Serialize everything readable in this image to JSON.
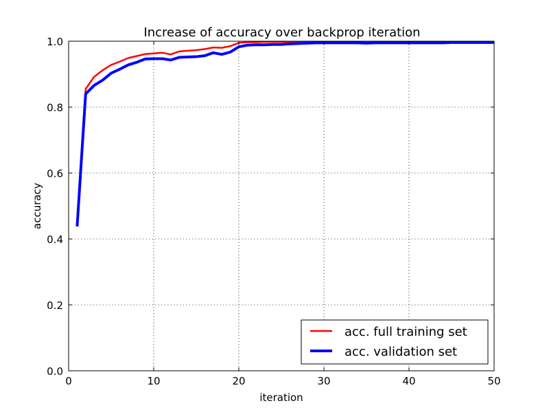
{
  "chart_data": {
    "type": "line",
    "title": "Increase of accuracy over backprop iteration",
    "xlabel": "iteration",
    "ylabel": "accuracy",
    "xlim": [
      0,
      50
    ],
    "ylim": [
      0.0,
      1.0
    ],
    "xticks": [
      0,
      10,
      20,
      30,
      40,
      50
    ],
    "yticks": [
      0.0,
      0.2,
      0.4,
      0.6,
      0.8,
      1.0
    ],
    "xtick_labels": [
      "0",
      "10",
      "20",
      "30",
      "40",
      "50"
    ],
    "ytick_labels": [
      "0.0",
      "0.2",
      "0.4",
      "0.6",
      "0.8",
      "1.0"
    ],
    "grid": true,
    "legend_position": "bottom-right",
    "series": [
      {
        "name": "acc. full training set",
        "color": "#ff0000",
        "x": [
          1,
          2,
          3,
          4,
          5,
          6,
          7,
          8,
          9,
          10,
          11,
          12,
          13,
          14,
          15,
          16,
          17,
          18,
          19,
          20,
          21,
          22,
          23,
          24,
          25,
          26,
          27,
          28,
          29,
          30,
          31,
          32,
          33,
          34,
          35,
          36,
          37,
          38,
          39,
          40,
          41,
          42,
          43,
          44,
          45,
          46,
          47,
          48,
          49,
          50
        ],
        "values": [
          0.45,
          0.855,
          0.892,
          0.912,
          0.928,
          0.938,
          0.949,
          0.955,
          0.961,
          0.963,
          0.965,
          0.96,
          0.969,
          0.971,
          0.973,
          0.976,
          0.981,
          0.98,
          0.985,
          0.995,
          0.997,
          0.997,
          0.998,
          0.998,
          0.998,
          0.998,
          0.998,
          0.998,
          0.998,
          0.998,
          0.998,
          0.998,
          0.998,
          0.998,
          0.998,
          0.998,
          0.998,
          0.998,
          0.998,
          0.998,
          0.998,
          0.998,
          0.998,
          0.998,
          0.998,
          0.998,
          0.998,
          0.998,
          0.998,
          0.998
        ]
      },
      {
        "name": "acc. validation set",
        "color": "#0000ff",
        "x": [
          1,
          2,
          3,
          4,
          5,
          6,
          7,
          8,
          9,
          10,
          11,
          12,
          13,
          14,
          15,
          16,
          17,
          18,
          19,
          20,
          21,
          22,
          23,
          24,
          25,
          26,
          27,
          28,
          29,
          30,
          31,
          32,
          33,
          34,
          35,
          36,
          37,
          38,
          39,
          40,
          41,
          42,
          43,
          44,
          45,
          46,
          47,
          48,
          49,
          50
        ],
        "values": [
          0.438,
          0.84,
          0.866,
          0.882,
          0.903,
          0.915,
          0.928,
          0.936,
          0.946,
          0.947,
          0.947,
          0.943,
          0.951,
          0.952,
          0.953,
          0.956,
          0.965,
          0.96,
          0.967,
          0.983,
          0.988,
          0.989,
          0.989,
          0.99,
          0.99,
          0.992,
          0.993,
          0.994,
          0.995,
          0.995,
          0.995,
          0.995,
          0.995,
          0.995,
          0.994,
          0.995,
          0.995,
          0.995,
          0.995,
          0.995,
          0.995,
          0.995,
          0.995,
          0.995,
          0.996,
          0.996,
          0.996,
          0.996,
          0.996,
          0.996
        ]
      }
    ]
  }
}
